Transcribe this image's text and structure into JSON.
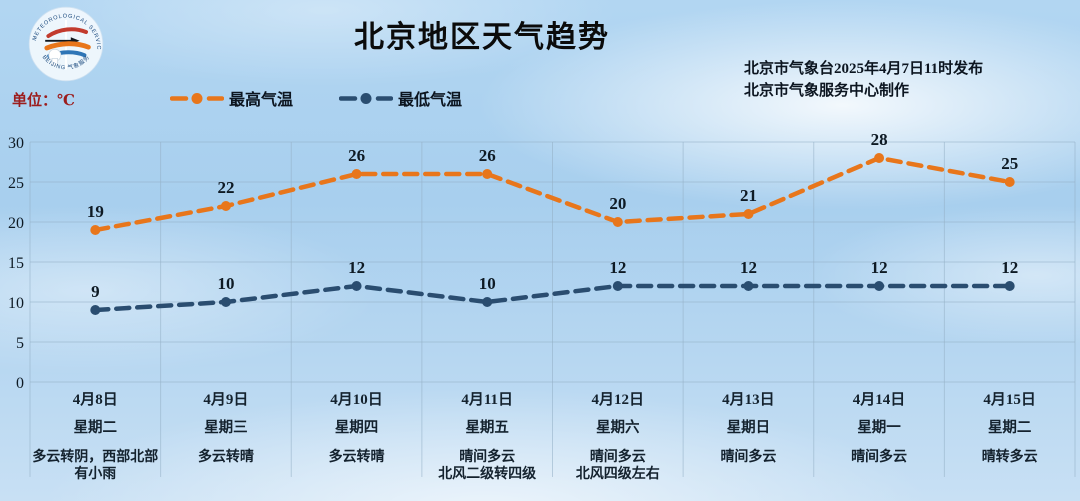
{
  "header": {
    "title": "北京地区天气趋势",
    "issued_line1": "北京市气象台2025年4月7日11时发布",
    "issued_line2": "北京市气象服务中心制作",
    "unit_label": "单位：℃"
  },
  "logo": {
    "arc_text_top": "METEOROLOGICAL SERVICE",
    "arc_text_bottom": "BEIJING 气象服务"
  },
  "colors": {
    "high_series": "#e8761b",
    "low_series": "#2a4d70",
    "grid": "#94b0c6",
    "unit_text": "#9c1d1d",
    "sky": "#aed4f0"
  },
  "chart_data": {
    "type": "line",
    "title": "北京地区天气趋势",
    "unit": "℃",
    "ylim": [
      0,
      30
    ],
    "yticks": [
      0,
      5,
      10,
      15,
      20,
      25,
      30
    ],
    "grid": true,
    "legend_position": "top-left",
    "line_style": "dashed-with-markers",
    "categories": [
      "4月8日",
      "4月9日",
      "4月10日",
      "4月11日",
      "4月12日",
      "4月13日",
      "4月14日",
      "4月15日"
    ],
    "weekdays": [
      "星期二",
      "星期三",
      "星期四",
      "星期五",
      "星期六",
      "星期日",
      "星期一",
      "星期二"
    ],
    "weather": [
      "多云转阴，西部北部\n有小雨",
      "多云转晴",
      "多云转晴",
      "晴间多云\n北风二级转四级",
      "晴间多云\n北风四级左右",
      "晴间多云",
      "晴间多云",
      "晴转多云"
    ],
    "series": [
      {
        "name": "最高气温",
        "color": "#e8761b",
        "values": [
          19,
          22,
          26,
          26,
          20,
          21,
          28,
          25
        ]
      },
      {
        "name": "最低气温",
        "color": "#2a4d70",
        "values": [
          9,
          10,
          12,
          10,
          12,
          12,
          12,
          12
        ]
      }
    ]
  }
}
